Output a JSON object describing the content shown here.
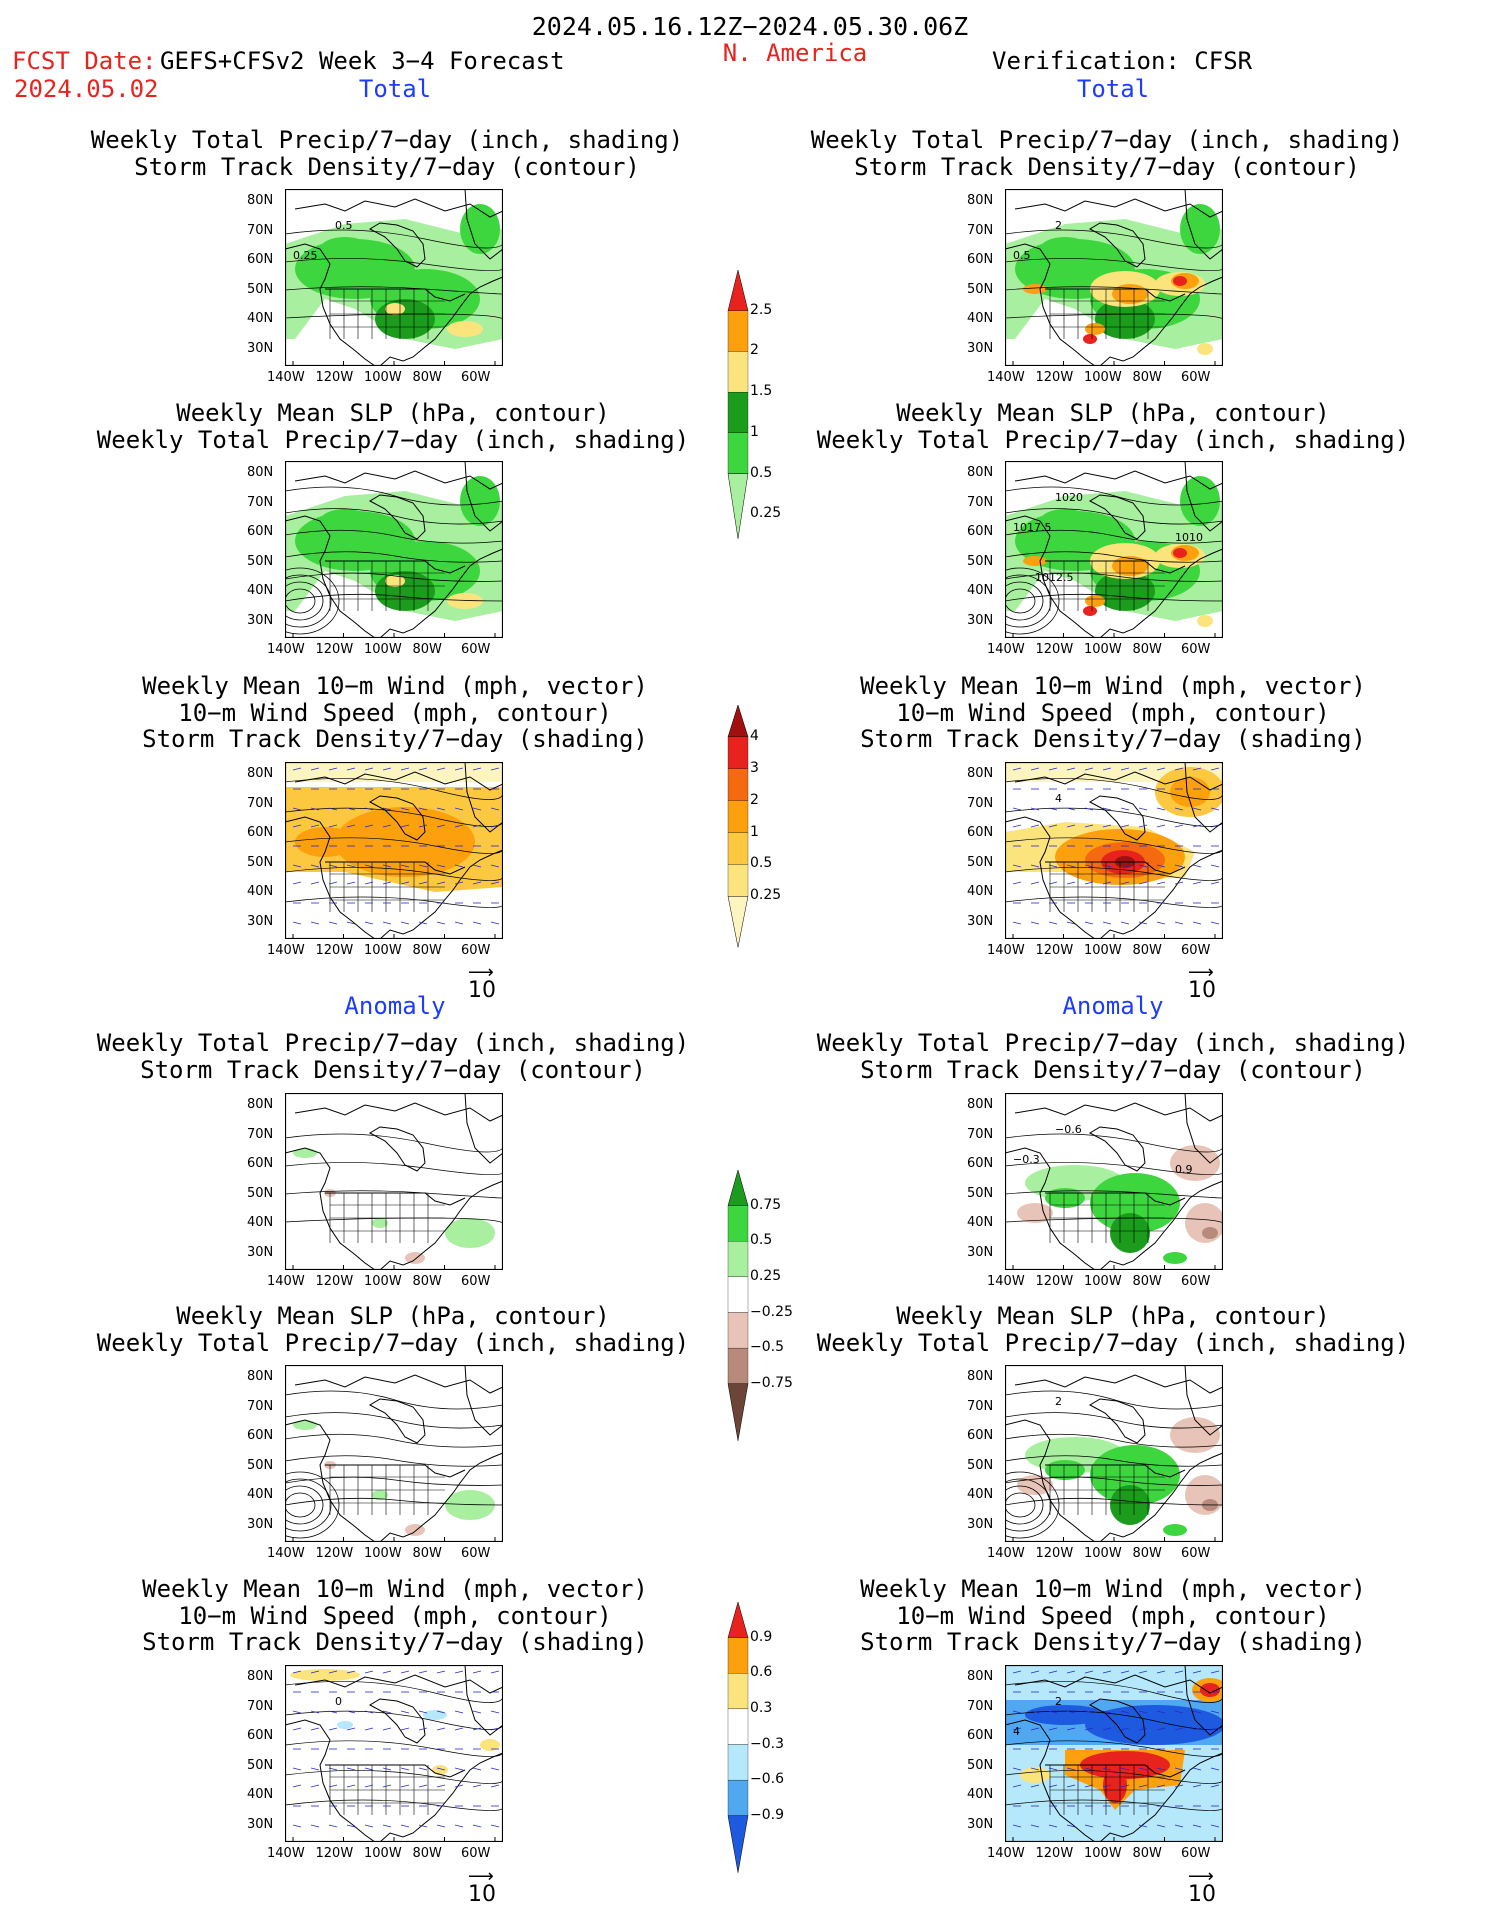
{
  "header": {
    "period": "2024.05.16.12Z−2024.05.30.06Z",
    "fcst_label": "FCST Date:",
    "fcst_model": "GEFS+CFSv2 Week 3−4 Forecast",
    "fcst_date": "2024.05.02",
    "region": "N. America",
    "verification": "Verification: CFSR"
  },
  "sections": {
    "total": "Total",
    "anomaly": "Anomaly"
  },
  "titles": {
    "precip_storm": [
      "Weekly Total Precip/7−day (inch, shading)",
      "Storm Track Density/7−day (contour)"
    ],
    "slp_precip": [
      "Weekly Mean SLP (hPa, contour)",
      "Weekly Total Precip/7−day (inch, shading)"
    ],
    "wind_storm": [
      "Weekly Mean 10−m Wind (mph, vector)",
      "10−m Wind Speed (mph, contour)",
      "Storm Track Density/7−day (shading)"
    ]
  },
  "axes": {
    "lat": [
      "80N",
      "70N",
      "60N",
      "50N",
      "40N",
      "30N"
    ],
    "lon": [
      "140W",
      "120W",
      "100W",
      "80W",
      "60W"
    ]
  },
  "vector_ref": "10",
  "colorbars": [
    {
      "name": "precip-total",
      "labels": [
        "2.5",
        "2",
        "1.5",
        "1",
        "0.5",
        "0.25"
      ],
      "colors": [
        "#e8231e",
        "#fca00e",
        "#fce47c",
        "#1c9c1c",
        "#3ed63e",
        "#a8f0a0"
      ]
    },
    {
      "name": "storm-total",
      "labels": [
        "4",
        "3",
        "2",
        "1",
        "0.5",
        "0.25"
      ],
      "colors": [
        "#a01010",
        "#e8231e",
        "#f56a10",
        "#fca00e",
        "#fcc840",
        "#fce47c",
        "#fdf5c0"
      ]
    },
    {
      "name": "precip-anom",
      "labels": [
        "0.75",
        "0.5",
        "0.25",
        "−0.25",
        "−0.5",
        "−0.75"
      ],
      "colors": [
        "#1c9c1c",
        "#3ed63e",
        "#a8f0a0",
        "#ffffff",
        "#e8c4b8",
        "#b88a7c",
        "#6c4438"
      ]
    },
    {
      "name": "storm-anom",
      "labels": [
        "0.9",
        "0.6",
        "0.3",
        "−0.3",
        "−0.6",
        "−0.9"
      ],
      "colors": [
        "#e8231e",
        "#fca00e",
        "#fce47c",
        "#ffffff",
        "#b4e8fa",
        "#50a8f0",
        "#1e5ae0"
      ]
    }
  ],
  "panel_labels": {
    "p_fc_t1": [
      "0.5",
      "0.25"
    ],
    "p_ob_t1": [
      "2",
      "0.5"
    ],
    "p_ob_t2": [
      "1020",
      "1017.5",
      "1010",
      "1012.5"
    ],
    "p_ob_t3": [
      "4"
    ],
    "p_ob_a1": [
      "−0.6",
      "−0.3",
      "0.9"
    ],
    "p_ob_a2": [
      "2"
    ],
    "p_fc_a3": [
      "0"
    ],
    "p_ob_a3": [
      "2",
      "4"
    ]
  },
  "colors": {
    "red_text": "#e8231e",
    "blue_text": "#1e3cff"
  }
}
